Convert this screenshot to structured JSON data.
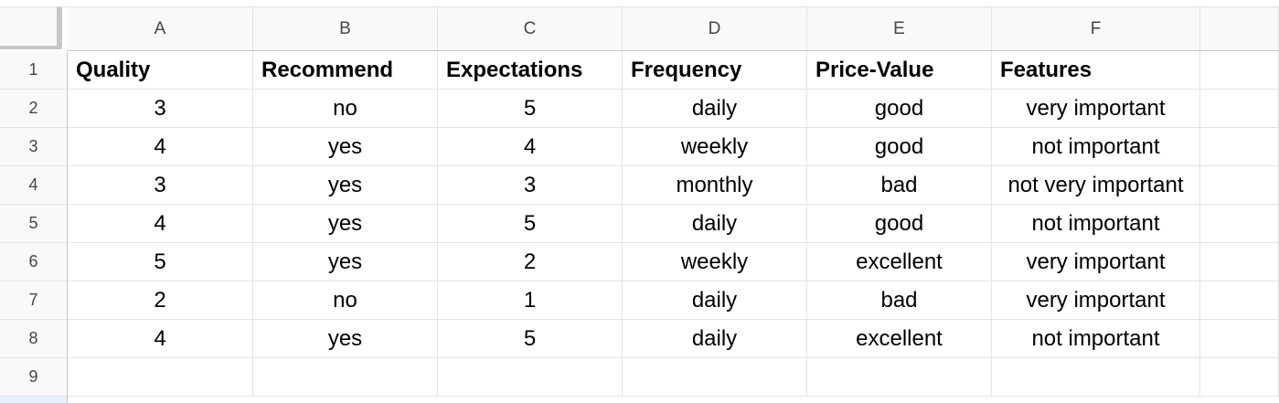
{
  "columns": [
    "A",
    "B",
    "C",
    "D",
    "E",
    "F",
    ""
  ],
  "row_numbers": [
    "1",
    "2",
    "3",
    "4",
    "5",
    "6",
    "7",
    "8",
    "9"
  ],
  "headers": [
    "Quality",
    "Recommend",
    "Expectations",
    "Frequency",
    "Price-Value",
    "Features"
  ],
  "rows": [
    [
      "3",
      "no",
      "5",
      "daily",
      "good",
      "very important"
    ],
    [
      "4",
      "yes",
      "4",
      "weekly",
      "good",
      "not important"
    ],
    [
      "3",
      "yes",
      "3",
      "monthly",
      "bad",
      "not very important"
    ],
    [
      "4",
      "yes",
      "5",
      "daily",
      "good",
      "not important"
    ],
    [
      "5",
      "yes",
      "2",
      "weekly",
      "excellent",
      "very important"
    ],
    [
      "2",
      "no",
      "1",
      "daily",
      "bad",
      "very important"
    ],
    [
      "4",
      "yes",
      "5",
      "daily",
      "excellent",
      "not important"
    ]
  ]
}
